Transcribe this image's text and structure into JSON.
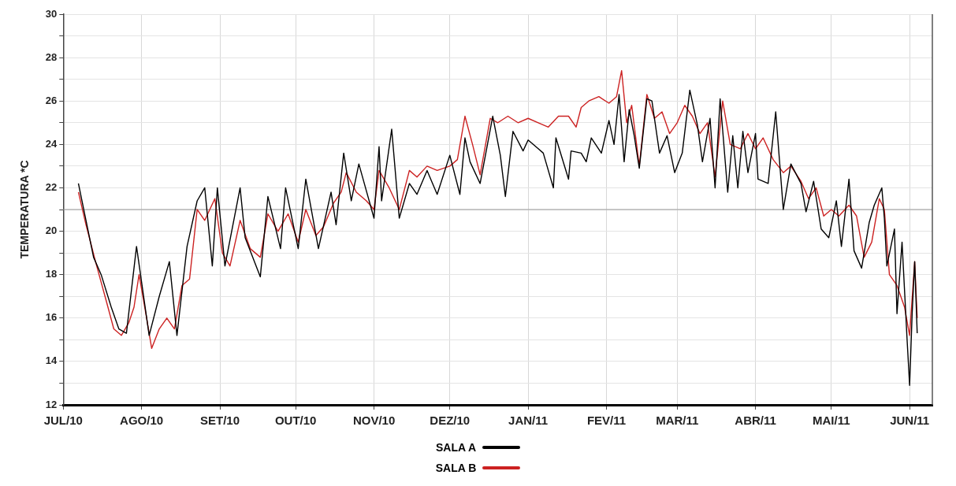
{
  "chart_data": {
    "type": "line",
    "ylabel": "TEMPERATURA *C",
    "xlim": [
      "2010-07-01",
      "2011-06-10"
    ],
    "xticks": [
      {
        "value": "2010-07-01",
        "label": "JUL/10"
      },
      {
        "value": "2010-08-01",
        "label": "AGO/10"
      },
      {
        "value": "2010-09-01",
        "label": "SET/10"
      },
      {
        "value": "2010-10-01",
        "label": "OUT/10"
      },
      {
        "value": "2010-11-01",
        "label": "NOV/10"
      },
      {
        "value": "2010-12-01",
        "label": "DEZ/10"
      },
      {
        "value": "2011-01-01",
        "label": "JAN/11"
      },
      {
        "value": "2011-02-01",
        "label": "FEV/11"
      },
      {
        "value": "2011-03-01",
        "label": "MAR/11"
      },
      {
        "value": "2011-04-01",
        "label": "ABR/11"
      },
      {
        "value": "2011-05-01",
        "label": "MAI/11"
      },
      {
        "value": "2011-06-01",
        "label": "JUN/11"
      }
    ],
    "ylim": [
      12,
      30
    ],
    "yticks": [
      12,
      {
        "value": 13,
        "label": null
      },
      14,
      {
        "value": 15,
        "label": null
      },
      16,
      {
        "value": 17,
        "label": null
      },
      18,
      {
        "value": 19,
        "label": null
      },
      20,
      {
        "value": 21,
        "label": null
      },
      22,
      {
        "value": 23,
        "label": null
      },
      24,
      {
        "value": 25,
        "label": null
      },
      26,
      {
        "value": 27,
        "label": null
      },
      28,
      {
        "value": 29,
        "label": null
      },
      30
    ],
    "grid": true,
    "legend": "bottom",
    "marker": "none",
    "line_style": "solid",
    "ref_lines": [
      {
        "axis": "y",
        "value": 21,
        "color": "#999999"
      }
    ],
    "series": [
      {
        "name": "SALA A",
        "color": "#000000",
        "x": [
          "2010-07-07",
          "2010-07-10",
          "2010-07-13",
          "2010-07-16",
          "2010-07-20",
          "2010-07-23",
          "2010-07-26",
          "2010-07-30",
          "2010-08-04",
          "2010-08-08",
          "2010-08-12",
          "2010-08-15",
          "2010-08-19",
          "2010-08-23",
          "2010-08-26",
          "2010-08-29",
          "2010-08-31",
          "2010-09-03",
          "2010-09-09",
          "2010-09-11",
          "2010-09-17",
          "2010-09-20",
          "2010-09-25",
          "2010-09-27",
          "2010-10-02",
          "2010-10-05",
          "2010-10-10",
          "2010-10-15",
          "2010-10-17",
          "2010-10-20",
          "2010-10-23",
          "2010-10-26",
          "2010-11-01",
          "2010-11-03",
          "2010-11-04",
          "2010-11-08",
          "2010-11-11",
          "2010-11-15",
          "2010-11-18",
          "2010-11-22",
          "2010-11-26",
          "2010-12-01",
          "2010-12-05",
          "2010-12-07",
          "2010-12-09",
          "2010-12-13",
          "2010-12-18",
          "2010-12-21",
          "2010-12-23",
          "2010-12-26",
          "2010-12-30",
          "2011-01-01",
          "2011-01-05",
          "2011-01-07",
          "2011-01-11",
          "2011-01-12",
          "2011-01-17",
          "2011-01-18",
          "2011-01-22",
          "2011-01-24",
          "2011-01-26",
          "2011-01-30",
          "2011-02-02",
          "2011-02-04",
          "2011-02-06",
          "2011-02-08",
          "2011-02-10",
          "2011-02-12",
          "2011-02-14",
          "2011-02-17",
          "2011-02-19",
          "2011-02-22",
          "2011-02-25",
          "2011-02-28",
          "2011-03-03",
          "2011-03-06",
          "2011-03-09",
          "2011-03-11",
          "2011-03-14",
          "2011-03-16",
          "2011-03-18",
          "2011-03-21",
          "2011-03-23",
          "2011-03-25",
          "2011-03-27",
          "2011-03-29",
          "2011-04-01",
          "2011-04-02",
          "2011-04-06",
          "2011-04-09",
          "2011-04-12",
          "2011-04-15",
          "2011-04-19",
          "2011-04-21",
          "2011-04-24",
          "2011-04-27",
          "2011-04-30",
          "2011-05-03",
          "2011-05-05",
          "2011-05-08",
          "2011-05-10",
          "2011-05-13",
          "2011-05-16",
          "2011-05-18",
          "2011-05-21",
          "2011-05-22",
          "2011-05-23",
          "2011-05-26",
          "2011-05-27",
          "2011-05-29",
          "2011-05-31",
          "2011-06-01",
          "2011-06-02",
          "2011-06-03",
          "2011-06-04"
        ],
        "values": [
          22.2,
          20.5,
          18.8,
          18.0,
          16.5,
          15.5,
          15.3,
          19.3,
          15.2,
          17.0,
          18.6,
          15.2,
          19.3,
          21.4,
          22.0,
          18.4,
          22.0,
          18.4,
          22.0,
          19.7,
          17.9,
          21.6,
          19.2,
          22.0,
          19.2,
          22.4,
          19.2,
          21.8,
          20.3,
          23.6,
          21.4,
          23.1,
          20.6,
          23.9,
          21.4,
          24.7,
          20.6,
          22.2,
          21.7,
          22.8,
          21.7,
          23.5,
          21.7,
          24.3,
          23.2,
          22.2,
          25.3,
          23.5,
          21.6,
          24.6,
          23.7,
          24.2,
          23.8,
          23.6,
          22.0,
          24.3,
          22.4,
          23.7,
          23.6,
          23.2,
          24.3,
          23.6,
          25.1,
          24.0,
          26.3,
          23.2,
          25.6,
          24.4,
          22.9,
          26.1,
          26.0,
          23.6,
          24.4,
          22.7,
          23.6,
          26.5,
          24.9,
          23.2,
          25.2,
          22.0,
          26.1,
          21.8,
          24.4,
          22.0,
          24.6,
          22.7,
          24.5,
          22.4,
          22.2,
          25.5,
          21.0,
          23.1,
          22.2,
          20.9,
          22.3,
          20.1,
          19.7,
          21.4,
          19.3,
          22.4,
          19.1,
          18.3,
          20.4,
          21.2,
          22.0,
          20.6,
          18.4,
          20.1,
          16.2,
          19.5,
          15.0,
          12.9,
          16.2,
          18.6,
          15.3
        ]
      },
      {
        "name": "SALA B",
        "color": "#cc2222",
        "x": [
          "2010-07-07",
          "2010-07-10",
          "2010-07-14",
          "2010-07-18",
          "2010-07-21",
          "2010-07-24",
          "2010-07-27",
          "2010-07-29",
          "2010-07-31",
          "2010-08-03",
          "2010-08-05",
          "2010-08-08",
          "2010-08-11",
          "2010-08-14",
          "2010-08-17",
          "2010-08-20",
          "2010-08-23",
          "2010-08-26",
          "2010-08-30",
          "2010-09-02",
          "2010-09-05",
          "2010-09-09",
          "2010-09-13",
          "2010-09-17",
          "2010-09-20",
          "2010-09-24",
          "2010-09-28",
          "2010-10-02",
          "2010-10-05",
          "2010-10-09",
          "2010-10-12",
          "2010-10-16",
          "2010-10-19",
          "2010-10-21",
          "2010-10-25",
          "2010-10-29",
          "2010-11-01",
          "2010-11-03",
          "2010-11-07",
          "2010-11-11",
          "2010-11-15",
          "2010-11-18",
          "2010-11-22",
          "2010-11-26",
          "2010-12-01",
          "2010-12-04",
          "2010-12-07",
          "2010-12-10",
          "2010-12-13",
          "2010-12-17",
          "2010-12-20",
          "2010-12-24",
          "2010-12-28",
          "2011-01-01",
          "2011-01-05",
          "2011-01-09",
          "2011-01-13",
          "2011-01-17",
          "2011-01-20",
          "2011-01-22",
          "2011-01-25",
          "2011-01-29",
          "2011-02-02",
          "2011-02-05",
          "2011-02-07",
          "2011-02-09",
          "2011-02-11",
          "2011-02-14",
          "2011-02-17",
          "2011-02-20",
          "2011-02-23",
          "2011-02-26",
          "2011-03-01",
          "2011-03-04",
          "2011-03-07",
          "2011-03-10",
          "2011-03-13",
          "2011-03-16",
          "2011-03-19",
          "2011-03-22",
          "2011-03-26",
          "2011-03-29",
          "2011-04-01",
          "2011-04-04",
          "2011-04-08",
          "2011-04-12",
          "2011-04-15",
          "2011-04-19",
          "2011-04-22",
          "2011-04-25",
          "2011-04-28",
          "2011-05-01",
          "2011-05-04",
          "2011-05-08",
          "2011-05-11",
          "2011-05-14",
          "2011-05-17",
          "2011-05-20",
          "2011-05-22",
          "2011-05-24",
          "2011-05-27",
          "2011-05-30",
          "2011-06-01",
          "2011-06-03",
          "2011-06-04"
        ],
        "values": [
          21.8,
          20.3,
          18.5,
          16.8,
          15.5,
          15.2,
          15.8,
          16.5,
          18.0,
          16.0,
          14.6,
          15.5,
          16.0,
          15.5,
          17.5,
          17.8,
          21.0,
          20.5,
          21.5,
          19.0,
          18.4,
          20.5,
          19.2,
          18.8,
          20.8,
          20.0,
          20.8,
          19.5,
          21.0,
          19.8,
          20.2,
          21.3,
          21.8,
          22.7,
          21.8,
          21.4,
          21.0,
          22.8,
          22.0,
          21.0,
          22.8,
          22.5,
          23.0,
          22.8,
          23.0,
          23.3,
          25.3,
          24.0,
          22.6,
          25.2,
          25.0,
          25.3,
          25.0,
          25.2,
          25.0,
          24.8,
          25.3,
          25.3,
          24.8,
          25.7,
          26.0,
          26.2,
          25.9,
          26.2,
          27.4,
          25.0,
          25.8,
          23.0,
          26.3,
          25.2,
          25.5,
          24.5,
          25.0,
          25.8,
          25.3,
          24.5,
          25.0,
          22.5,
          26.0,
          24.0,
          23.8,
          24.5,
          23.8,
          24.3,
          23.3,
          22.7,
          23.0,
          22.3,
          21.5,
          22.0,
          20.7,
          21.0,
          20.7,
          21.2,
          20.7,
          18.8,
          19.5,
          21.5,
          21.0,
          18.0,
          17.5,
          16.5,
          15.2,
          18.6,
          16.0
        ]
      }
    ]
  }
}
